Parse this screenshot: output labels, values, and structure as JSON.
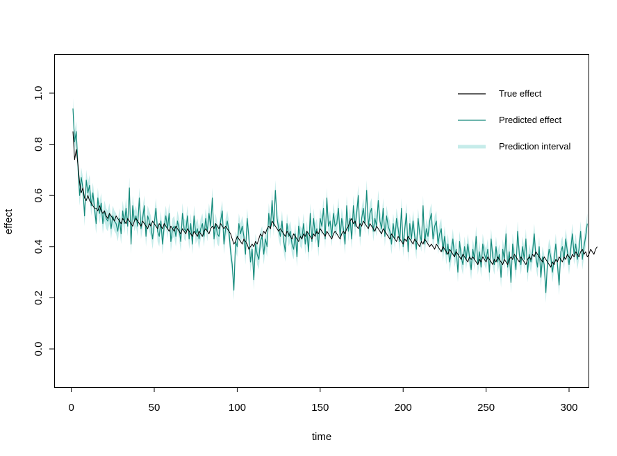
{
  "chart_data": {
    "type": "line",
    "xlabel": "time",
    "ylabel": "effect",
    "xlim": [
      1,
      300
    ],
    "ylim": [
      -0.15,
      1.15
    ],
    "x_ticks": [
      "0",
      "50",
      "100",
      "150",
      "200",
      "250",
      "300"
    ],
    "y_ticks": [
      "0.0",
      "0.2",
      "0.4",
      "0.6",
      "0.8",
      "1.0"
    ],
    "grid": false,
    "legend_position": "top-right",
    "colors": {
      "true": "#000000",
      "predicted": "#14897a",
      "interval": "#c6ecea"
    },
    "legend": [
      {
        "label": "True effect",
        "color": "#000000",
        "kind": "line"
      },
      {
        "label": "Predicted effect",
        "color": "#14897a",
        "kind": "line"
      },
      {
        "label": "Prediction interval",
        "color": "#c6ecea",
        "kind": "band"
      }
    ],
    "series": [
      {
        "name": "True effect",
        "x_start": 1,
        "x_step": 1,
        "values": [
          0.85,
          0.74,
          0.78,
          0.72,
          0.65,
          0.61,
          0.63,
          0.59,
          0.58,
          0.6,
          0.58,
          0.57,
          0.56,
          0.55,
          0.55,
          0.54,
          0.56,
          0.54,
          0.53,
          0.54,
          0.52,
          0.51,
          0.53,
          0.52,
          0.51,
          0.5,
          0.52,
          0.51,
          0.5,
          0.49,
          0.51,
          0.5,
          0.49,
          0.51,
          0.5,
          0.49,
          0.48,
          0.5,
          0.51,
          0.5,
          0.49,
          0.48,
          0.5,
          0.49,
          0.48,
          0.47,
          0.49,
          0.48,
          0.5,
          0.49,
          0.48,
          0.47,
          0.49,
          0.48,
          0.47,
          0.49,
          0.48,
          0.47,
          0.46,
          0.48,
          0.47,
          0.46,
          0.48,
          0.47,
          0.46,
          0.45,
          0.47,
          0.46,
          0.45,
          0.47,
          0.46,
          0.45,
          0.44,
          0.46,
          0.45,
          0.44,
          0.46,
          0.45,
          0.44,
          0.46,
          0.47,
          0.46,
          0.45,
          0.47,
          0.48,
          0.47,
          0.49,
          0.48,
          0.47,
          0.49,
          0.48,
          0.47,
          0.48,
          0.47,
          0.46,
          0.45,
          0.43,
          0.41,
          0.42,
          0.44,
          0.43,
          0.42,
          0.41,
          0.43,
          0.42,
          0.41,
          0.39,
          0.4,
          0.41,
          0.4,
          0.42,
          0.41,
          0.43,
          0.45,
          0.44,
          0.46,
          0.45,
          0.47,
          0.48,
          0.47,
          0.5,
          0.49,
          0.48,
          0.47,
          0.46,
          0.47,
          0.46,
          0.45,
          0.44,
          0.46,
          0.45,
          0.44,
          0.43,
          0.45,
          0.44,
          0.43,
          0.42,
          0.44,
          0.43,
          0.45,
          0.44,
          0.46,
          0.45,
          0.44,
          0.43,
          0.45,
          0.44,
          0.46,
          0.45,
          0.47,
          0.46,
          0.45,
          0.44,
          0.46,
          0.45,
          0.44,
          0.43,
          0.45,
          0.46,
          0.45,
          0.44,
          0.43,
          0.45,
          0.46,
          0.45,
          0.47,
          0.48,
          0.5,
          0.51,
          0.49,
          0.5,
          0.48,
          0.47,
          0.49,
          0.48,
          0.5,
          0.49,
          0.48,
          0.47,
          0.49,
          0.48,
          0.47,
          0.46,
          0.48,
          0.47,
          0.46,
          0.45,
          0.47,
          0.46,
          0.45,
          0.44,
          0.43,
          0.45,
          0.44,
          0.43,
          0.42,
          0.44,
          0.43,
          0.42,
          0.41,
          0.43,
          0.42,
          0.44,
          0.43,
          0.42,
          0.41,
          0.43,
          0.42,
          0.41,
          0.4,
          0.42,
          0.41,
          0.43,
          0.42,
          0.41,
          0.4,
          0.41,
          0.4,
          0.39,
          0.41,
          0.4,
          0.39,
          0.38,
          0.4,
          0.39,
          0.38,
          0.37,
          0.39,
          0.38,
          0.37,
          0.36,
          0.38,
          0.37,
          0.36,
          0.35,
          0.37,
          0.36,
          0.35,
          0.34,
          0.36,
          0.35,
          0.36,
          0.35,
          0.34,
          0.33,
          0.35,
          0.34,
          0.36,
          0.35,
          0.34,
          0.36,
          0.35,
          0.34,
          0.33,
          0.35,
          0.34,
          0.36,
          0.35,
          0.34,
          0.33,
          0.35,
          0.34,
          0.33,
          0.35,
          0.36,
          0.35,
          0.37,
          0.36,
          0.35,
          0.34,
          0.36,
          0.35,
          0.34,
          0.33,
          0.35,
          0.36,
          0.35,
          0.37,
          0.36,
          0.38,
          0.37,
          0.36,
          0.35,
          0.34,
          0.36,
          0.35,
          0.34,
          0.33,
          0.32,
          0.34,
          0.33,
          0.35,
          0.34,
          0.36,
          0.35,
          0.34,
          0.36,
          0.35,
          0.37,
          0.36,
          0.35,
          0.37,
          0.36,
          0.38,
          0.37,
          0.36,
          0.38,
          0.39,
          0.37,
          0.38,
          0.36,
          0.37,
          0.39,
          0.38,
          0.37,
          0.39,
          0.4
        ]
      },
      {
        "name": "Predicted effect",
        "x_start": 1,
        "x_step": 1,
        "values": [
          0.94,
          0.81,
          0.85,
          0.71,
          0.6,
          0.67,
          0.63,
          0.52,
          0.66,
          0.61,
          0.64,
          0.56,
          0.61,
          0.55,
          0.49,
          0.59,
          0.53,
          0.57,
          0.49,
          0.54,
          0.51,
          0.5,
          0.53,
          0.47,
          0.52,
          0.5,
          0.49,
          0.46,
          0.51,
          0.45,
          0.54,
          0.49,
          0.55,
          0.48,
          0.63,
          0.41,
          0.56,
          0.5,
          0.52,
          0.48,
          0.59,
          0.47,
          0.51,
          0.56,
          0.44,
          0.52,
          0.5,
          0.48,
          0.43,
          0.49,
          0.55,
          0.46,
          0.44,
          0.5,
          0.41,
          0.48,
          0.52,
          0.47,
          0.53,
          0.42,
          0.47,
          0.48,
          0.44,
          0.5,
          0.47,
          0.42,
          0.53,
          0.47,
          0.46,
          0.52,
          0.43,
          0.49,
          0.41,
          0.52,
          0.45,
          0.47,
          0.43,
          0.47,
          0.49,
          0.44,
          0.51,
          0.46,
          0.53,
          0.48,
          0.59,
          0.43,
          0.49,
          0.45,
          0.44,
          0.5,
          0.54,
          0.41,
          0.47,
          0.5,
          0.46,
          0.38,
          0.33,
          0.23,
          0.42,
          0.4,
          0.49,
          0.45,
          0.48,
          0.44,
          0.37,
          0.51,
          0.44,
          0.34,
          0.39,
          0.27,
          0.41,
          0.37,
          0.35,
          0.42,
          0.44,
          0.37,
          0.43,
          0.4,
          0.53,
          0.47,
          0.58,
          0.48,
          0.62,
          0.51,
          0.47,
          0.44,
          0.5,
          0.42,
          0.38,
          0.49,
          0.44,
          0.46,
          0.41,
          0.39,
          0.45,
          0.36,
          0.48,
          0.44,
          0.43,
          0.49,
          0.41,
          0.46,
          0.38,
          0.53,
          0.42,
          0.51,
          0.45,
          0.47,
          0.4,
          0.51,
          0.48,
          0.55,
          0.43,
          0.59,
          0.48,
          0.5,
          0.44,
          0.53,
          0.48,
          0.49,
          0.55,
          0.44,
          0.51,
          0.47,
          0.41,
          0.56,
          0.46,
          0.51,
          0.43,
          0.56,
          0.48,
          0.53,
          0.6,
          0.44,
          0.51,
          0.55,
          0.49,
          0.62,
          0.48,
          0.53,
          0.55,
          0.46,
          0.51,
          0.48,
          0.58,
          0.5,
          0.47,
          0.55,
          0.44,
          0.52,
          0.48,
          0.46,
          0.41,
          0.49,
          0.43,
          0.51,
          0.47,
          0.42,
          0.55,
          0.4,
          0.47,
          0.53,
          0.38,
          0.49,
          0.43,
          0.5,
          0.44,
          0.39,
          0.51,
          0.45,
          0.42,
          0.56,
          0.41,
          0.47,
          0.44,
          0.5,
          0.53,
          0.43,
          0.48,
          0.5,
          0.41,
          0.45,
          0.47,
          0.38,
          0.44,
          0.37,
          0.41,
          0.34,
          0.38,
          0.43,
          0.36,
          0.39,
          0.3,
          0.42,
          0.36,
          0.33,
          0.4,
          0.35,
          0.41,
          0.36,
          0.31,
          0.39,
          0.35,
          0.44,
          0.33,
          0.38,
          0.32,
          0.41,
          0.37,
          0.35,
          0.39,
          0.3,
          0.43,
          0.36,
          0.33,
          0.4,
          0.34,
          0.37,
          0.28,
          0.39,
          0.35,
          0.45,
          0.32,
          0.38,
          0.26,
          0.41,
          0.36,
          0.31,
          0.46,
          0.37,
          0.33,
          0.4,
          0.35,
          0.43,
          0.3,
          0.37,
          0.34,
          0.38,
          0.45,
          0.36,
          0.32,
          0.4,
          0.28,
          0.36,
          0.33,
          0.22,
          0.34,
          0.39,
          0.36,
          0.3,
          0.35,
          0.41,
          0.33,
          0.25,
          0.38,
          0.4,
          0.35,
          0.43,
          0.38,
          0.33,
          0.39,
          0.45,
          0.37,
          0.41,
          0.35,
          0.39,
          0.46,
          0.35,
          0.4,
          0.44,
          0.49
        ]
      }
    ],
    "interval_halfwidth": 0.04
  }
}
